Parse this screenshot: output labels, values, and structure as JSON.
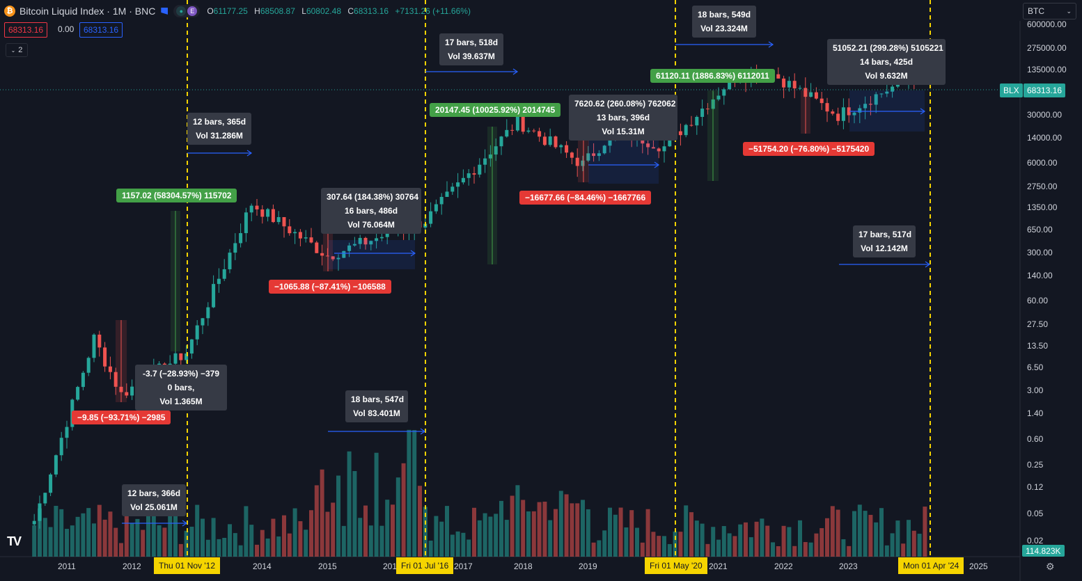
{
  "header": {
    "symbol_icon": "bitcoin-icon",
    "title": "Bitcoin Liquid Index · 1M · BNC",
    "badge_letter": "E",
    "ohlc": {
      "o_label": "O",
      "o": "61177.25",
      "h_label": "H",
      "h": "68508.87",
      "l_label": "L",
      "l": "60802.48",
      "c_label": "C",
      "c": "68313.16",
      "change": "+7131.26 (+11.66%)"
    },
    "sell_price": "68313.16",
    "spread": "0.00",
    "buy_price": "68313.16",
    "indicators_count": "2"
  },
  "symbol_search": {
    "value": "BTC"
  },
  "price_axis": {
    "labels": [
      "600000.00",
      "275000.00",
      "135000.00",
      "30000.00",
      "14000.00",
      "6000.00",
      "2750.00",
      "1350.00",
      "650.00",
      "300.00",
      "140.00",
      "60.00",
      "27.50",
      "13.50",
      "6.50",
      "3.00",
      "1.40",
      "0.60",
      "0.25",
      "0.12",
      "0.05",
      "0.02"
    ],
    "symbol_tag": "BLX",
    "current_price": "68313.16",
    "volume_tag": "114.823K"
  },
  "time_axis": {
    "years": [
      "2011",
      "2012",
      "2014",
      "2015",
      "201",
      "2017",
      "2018",
      "2019",
      "2021",
      "2022",
      "2023",
      "2025"
    ],
    "highlighted": [
      "Thu 01 Nov '12",
      "Fri 01 Jul '16",
      "Fri 01 May '20",
      "Mon 01 Apr '24"
    ]
  },
  "colors": {
    "bg": "#131722",
    "up": "#26a69a",
    "down": "#ef5350",
    "accent": "#2962ff",
    "halving": "#f5d400"
  },
  "annotations": {
    "a1": [
      "12 bars, 365d",
      "Vol 31.286M"
    ],
    "a2": [
      "17 bars, 518d",
      "Vol 39.637M"
    ],
    "a3": [
      "18 bars, 549d",
      "Vol 23.324M"
    ],
    "a4": [
      "51052.21 (299.28%) 5105221",
      "14 bars, 425d",
      "Vol 9.632M"
    ],
    "a5": [
      "7620.62 (260.08%) 762062",
      "13 bars, 396d",
      "Vol 15.31M"
    ],
    "a6": [
      "307.64 (184.38%) 30764",
      "16 bars, 486d",
      "Vol 76.064M"
    ],
    "a7": [
      "-3.7  (−28.93%) −379",
      "0 bars,",
      "Vol 1.365M"
    ],
    "a8": [
      "18 bars, 547d",
      "Vol 83.401M"
    ],
    "a9": [
      "12 bars, 366d",
      "Vol 25.061M"
    ],
    "a10": [
      "17 bars, 517d",
      "Vol 12.142M"
    ],
    "green1": "1157.02 (58304.57%) 115702",
    "green2": "20147.45 (10025.92%) 2014745",
    "green3": "61120.11 (1886.83%) 6112011",
    "red1": "−9.85 (−93.71%) −2985",
    "red2": "−1065.88 (−87.41%) −106588",
    "red3": "−16677.66 (−84.46%) −1667766",
    "red4": "−51754.20 (−76.80%) −5175420"
  },
  "chart_data": {
    "type": "candlestick",
    "scale": "log",
    "timeframe": "1M",
    "current_price": 68313.16,
    "halving_dates": [
      "2012-11-01",
      "2016-07-01",
      "2020-05-01",
      "2024-04-01"
    ],
    "monthly_close_keypoints": [
      {
        "x": "2010-07",
        "y": 0.06
      },
      {
        "x": "2011-06",
        "y": 17
      },
      {
        "x": "2011-11",
        "y": 3
      },
      {
        "x": "2012-11",
        "y": 11
      },
      {
        "x": "2013-11",
        "y": 1100
      },
      {
        "x": "2015-01",
        "y": 220
      },
      {
        "x": "2016-07",
        "y": 650
      },
      {
        "x": "2017-12",
        "y": 14000
      },
      {
        "x": "2018-12",
        "y": 3700
      },
      {
        "x": "2019-06",
        "y": 11000
      },
      {
        "x": "2020-03",
        "y": 6400
      },
      {
        "x": "2021-04",
        "y": 58000
      },
      {
        "x": "2021-11",
        "y": 61000
      },
      {
        "x": "2022-11",
        "y": 17000
      },
      {
        "x": "2024-03",
        "y": 68313
      }
    ]
  }
}
